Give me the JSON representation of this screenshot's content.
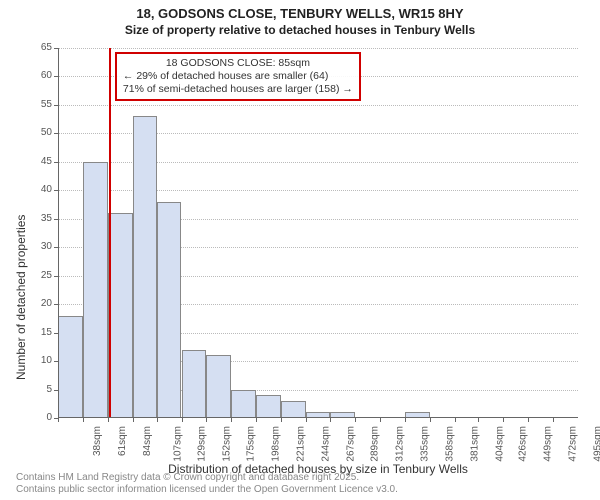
{
  "title": {
    "main": "18, GODSONS CLOSE, TENBURY WELLS, WR15 8HY",
    "sub": "Size of property relative to detached houses in Tenbury Wells"
  },
  "axes": {
    "ylabel": "Number of detached properties",
    "xlabel": "Distribution of detached houses by size in Tenbury Wells",
    "ymin": 0,
    "ymax": 65,
    "ytick_step": 5,
    "xtick_unit": "sqm"
  },
  "style": {
    "bar_fill": "#d5dff2",
    "bar_border": "#888888",
    "grid_color": "#bbbbbb",
    "axis_color": "#666666",
    "background": "#ffffff",
    "refline_color": "#d00000",
    "annot_border": "#d00000",
    "title_fontsize": 13,
    "label_fontsize": 12,
    "tick_fontsize": 10,
    "annot_fontsize": 10.5
  },
  "histogram": {
    "bin_starts": [
      38,
      61,
      84,
      107,
      129,
      152,
      175,
      198,
      221,
      244,
      267,
      289,
      312,
      335,
      358,
      381,
      404,
      426,
      449,
      472,
      495
    ],
    "values": [
      18,
      45,
      36,
      53,
      38,
      12,
      11,
      5,
      4,
      3,
      1,
      1,
      0,
      0,
      1,
      0,
      0,
      0,
      0,
      0,
      0
    ]
  },
  "reference": {
    "value_sqm": 85,
    "annot_lines": [
      "18 GODSONS CLOSE: 85sqm",
      "← 29% of detached houses are smaller (64)",
      "71% of semi-detached houses are larger (158) →"
    ]
  },
  "footer": {
    "line1": "Contains HM Land Registry data © Crown copyright and database right 2025.",
    "line2": "Contains public sector information licensed under the Open Government Licence v3.0."
  }
}
